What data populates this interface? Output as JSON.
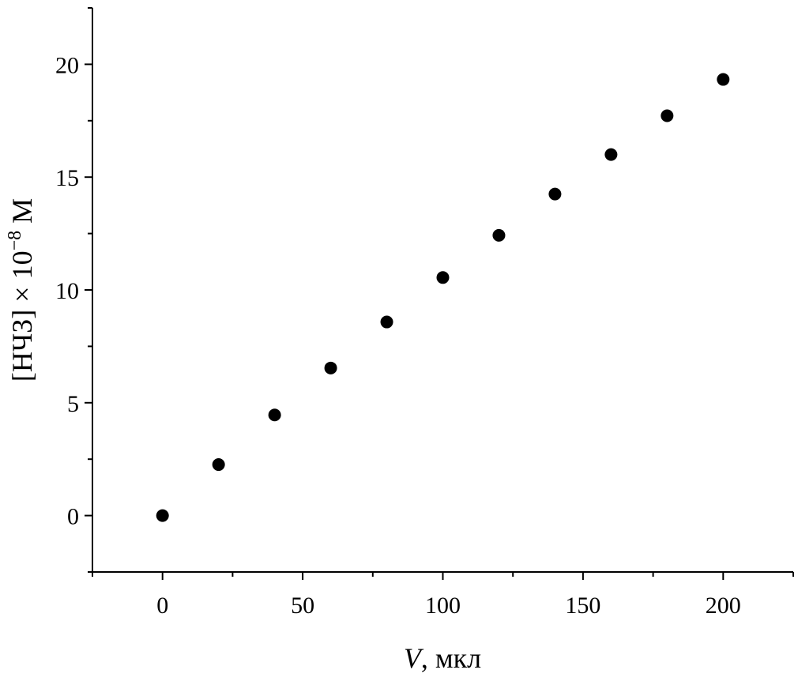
{
  "chart_data": {
    "type": "scatter",
    "title": "",
    "xlabel_var": "V",
    "xlabel_unit": ", мкл",
    "ylabel_main": "[НЧЗ] × 10",
    "ylabel_exp": "−8",
    "ylabel_unit": " M",
    "xlim": [
      -25,
      225
    ],
    "ylim": [
      -2.5,
      22.5
    ],
    "x_ticks": [
      0,
      50,
      100,
      150,
      200
    ],
    "x_tick_labels": [
      "0",
      "50",
      "100",
      "150",
      "200"
    ],
    "x_minor_ticks": [
      -25,
      25,
      75,
      125,
      175,
      225
    ],
    "y_ticks": [
      0,
      5,
      10,
      15,
      20
    ],
    "y_tick_labels": [
      "0",
      "5",
      "10",
      "15",
      "20"
    ],
    "y_minor_ticks": [
      -2.5,
      2.5,
      7.5,
      12.5,
      17.5,
      22.5
    ],
    "grid": false,
    "marker": "filled-circle",
    "marker_color": "#000000",
    "series": [
      {
        "x": [
          0,
          20,
          40,
          60,
          80,
          100,
          120,
          140,
          160,
          180,
          200
        ],
        "y": [
          0.0,
          2.26,
          4.46,
          6.54,
          8.58,
          10.55,
          12.42,
          14.25,
          16.0,
          17.72,
          19.33
        ]
      }
    ]
  }
}
